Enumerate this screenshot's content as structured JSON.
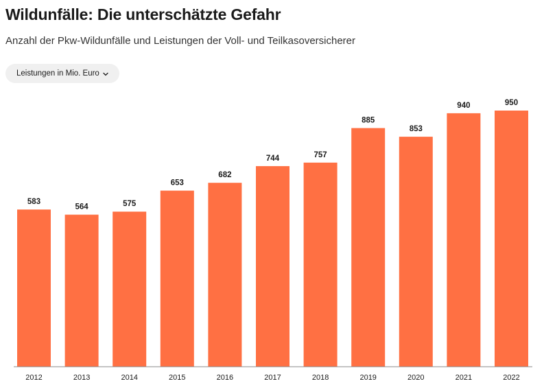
{
  "header": {
    "title": "Wildunfälle: Die unterschätzte Gefahr",
    "subtitle": "Anzahl der Pkw-Wildunfälle und Leistungen der Voll- und Teilkasoversicherer"
  },
  "filter": {
    "selected_label": "Leistungen in Mio. Euro",
    "icon": "chevron-down-icon"
  },
  "colors": {
    "bar": "#ff7043",
    "text": "#1a1a1a",
    "axis": "#888888"
  },
  "chart_data": {
    "type": "bar",
    "categories": [
      "2012",
      "2013",
      "2014",
      "2015",
      "2016",
      "2017",
      "2018",
      "2019",
      "2020",
      "2021",
      "2022"
    ],
    "values": [
      583,
      564,
      575,
      653,
      682,
      744,
      757,
      885,
      853,
      940,
      950
    ],
    "ylim": [
      0,
      950
    ],
    "grid": false,
    "data_labels": true
  }
}
